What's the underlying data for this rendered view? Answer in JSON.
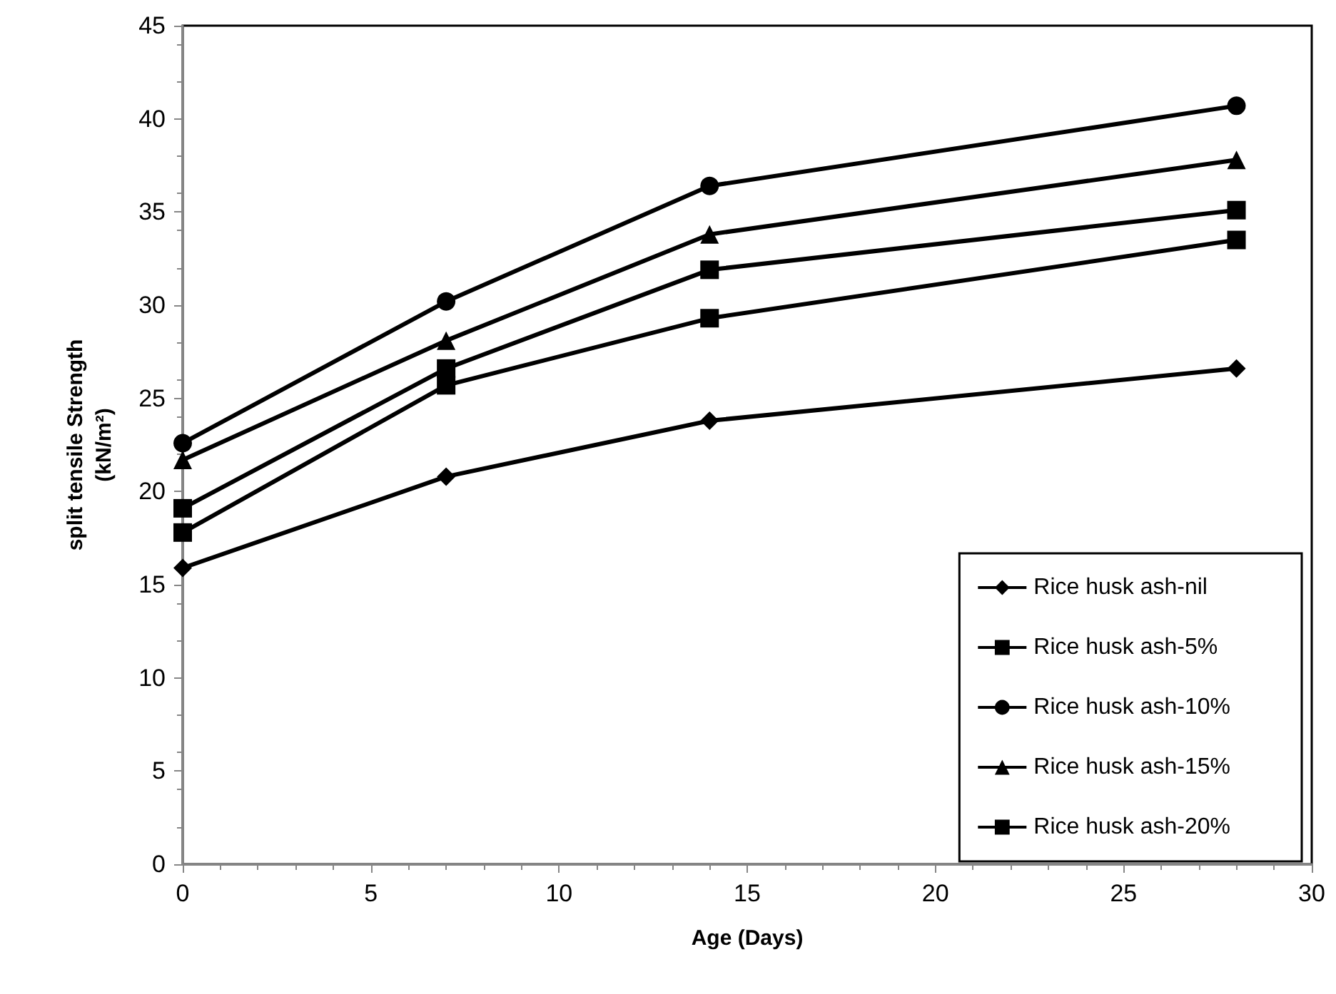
{
  "chart_data": {
    "type": "line",
    "xlabel": "Age (Days)",
    "ylabel": "split tensile Strength\n(kN/m²)",
    "xlim": [
      0,
      30
    ],
    "xticks": [
      0,
      5,
      10,
      15,
      20,
      25,
      30
    ],
    "ylim": [
      0,
      45
    ],
    "yticks": [
      0,
      5,
      10,
      15,
      20,
      25,
      30,
      35,
      40,
      45
    ],
    "grid": false,
    "legend": "bottom right",
    "line_style": "solid",
    "series": [
      {
        "name": "Rice husk ash-nil",
        "color": "#000000",
        "marker": "diamond",
        "x": [
          0,
          7,
          14,
          28
        ],
        "values": [
          15.9,
          20.8,
          23.8,
          26.6
        ]
      },
      {
        "name": "Rice husk ash-5%",
        "color": "#000000",
        "marker": "square",
        "x": [
          0,
          7,
          14,
          28
        ],
        "values": [
          17.8,
          25.7,
          29.3,
          33.5
        ]
      },
      {
        "name": "Rice husk ash-10%",
        "color": "#000000",
        "marker": "circle",
        "x": [
          0,
          7,
          14,
          28
        ],
        "values": [
          22.6,
          30.2,
          36.4,
          40.7
        ]
      },
      {
        "name": "Rice husk ash-15%",
        "color": "#000000",
        "marker": "triangle",
        "x": [
          0,
          7,
          14,
          28
        ],
        "values": [
          21.7,
          28.1,
          33.8,
          37.8
        ]
      },
      {
        "name": "Rice husk ash-20%",
        "color": "#000000",
        "marker": "square",
        "x": [
          0,
          7,
          14,
          28
        ],
        "values": [
          19.1,
          26.6,
          31.9,
          35.1
        ]
      }
    ]
  }
}
